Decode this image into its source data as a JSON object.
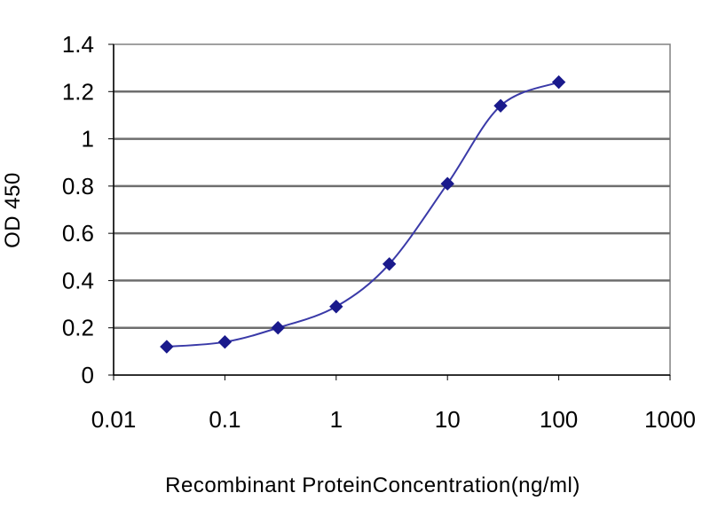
{
  "chart_data": {
    "type": "line",
    "x_scale": "log",
    "xlabel": "Recombinant ProteinConcentration(ng/ml)",
    "ylabel": "OD 450",
    "xlim": [
      0.01,
      1000
    ],
    "ylim": [
      0,
      1.4
    ],
    "x_ticks": [
      "0.01",
      "0.1",
      "1",
      "10",
      "100",
      "1000"
    ],
    "y_ticks": [
      "0",
      "0.2",
      "0.4",
      "0.6",
      "0.8",
      "1",
      "1.2",
      "1.4"
    ],
    "grid": "horizontal",
    "legend": "none",
    "series": [
      {
        "x": [
          0.03,
          0.1,
          0.3,
          1,
          3,
          10,
          30,
          100
        ],
        "y": [
          0.12,
          0.14,
          0.2,
          0.29,
          0.47,
          0.81,
          1.14,
          1.24
        ],
        "color": "#1a1a8c",
        "marker": "diamond"
      }
    ]
  }
}
